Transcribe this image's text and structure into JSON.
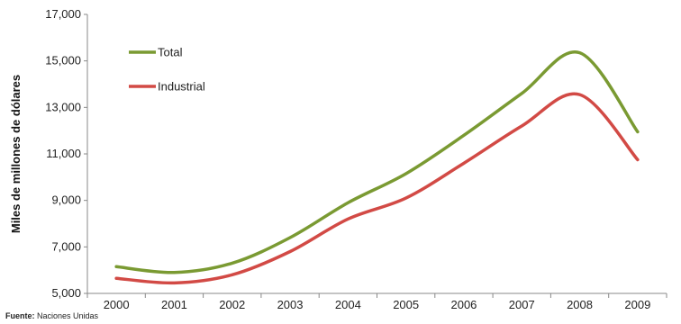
{
  "chart_data": {
    "type": "line",
    "x": [
      "2000",
      "2001",
      "2002",
      "2003",
      "2004",
      "2005",
      "2006",
      "2007",
      "2008",
      "2009"
    ],
    "ylabel": "Miles de millones de dólares",
    "ylim": [
      5000,
      17000
    ],
    "yticks": [
      "5,000",
      "7,000",
      "9,000",
      "11,000",
      "13,000",
      "15,000",
      "17,000"
    ],
    "grid": false,
    "legend": "top-left",
    "series": [
      {
        "name": "Total",
        "color": "#7a9a32",
        "values": [
          6150,
          5900,
          6300,
          7400,
          8900,
          10150,
          11800,
          13600,
          15350,
          11950
        ]
      },
      {
        "name": "Industrial",
        "color": "#d24a45",
        "values": [
          5650,
          5450,
          5800,
          6800,
          8200,
          9100,
          10600,
          12200,
          13550,
          10750
        ]
      }
    ]
  },
  "source": {
    "label": "Fuente:",
    "text": "Naciones Unidas"
  }
}
